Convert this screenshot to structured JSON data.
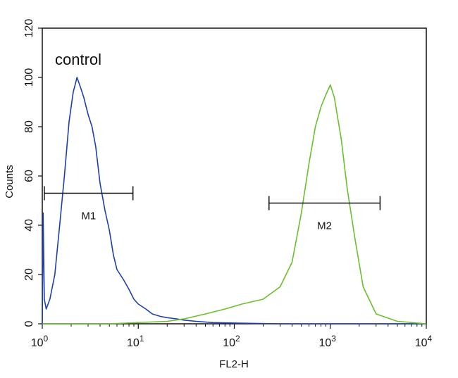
{
  "chart_data": {
    "type": "line",
    "annotation": "control",
    "xlabel": "FL2-H",
    "ylabel": "Counts",
    "x_scale": "log",
    "xlim": [
      1,
      10000
    ],
    "ylim": [
      0,
      120
    ],
    "x_ticks": [
      {
        "value": 1,
        "base": "10",
        "exp": "0"
      },
      {
        "value": 10,
        "base": "10",
        "exp": "1"
      },
      {
        "value": 100,
        "base": "10",
        "exp": "2"
      },
      {
        "value": 1000,
        "base": "10",
        "exp": "3"
      },
      {
        "value": 10000,
        "base": "10",
        "exp": "4"
      }
    ],
    "y_ticks": [
      0,
      20,
      40,
      60,
      80,
      100,
      120
    ],
    "grid": false,
    "series": [
      {
        "color": "#1f3fb0",
        "x": [
          1.0,
          1.02,
          1.05,
          1.1,
          1.2,
          1.35,
          1.5,
          1.7,
          1.9,
          2.1,
          2.3,
          2.5,
          2.7,
          3.0,
          3.3,
          3.6,
          4.0,
          4.5,
          5.0,
          5.5,
          6.0,
          7.0,
          8.0,
          9.0,
          10.0,
          12.0,
          14.0,
          17.0,
          20.0,
          25.0,
          30.0,
          40.0,
          60.0,
          100.0,
          300.0,
          1000.0,
          10000.0
        ],
        "y": [
          0,
          45,
          10,
          6,
          10,
          20,
          38,
          60,
          82,
          94,
          100,
          96,
          92,
          85,
          80,
          72,
          57,
          46,
          38,
          28,
          22,
          18,
          14,
          10,
          8,
          6,
          4,
          3,
          2.5,
          2,
          1.5,
          1,
          0.5,
          0.3,
          0,
          0,
          0
        ]
      },
      {
        "color": "#6abf2e",
        "x": [
          1.0,
          5.0,
          20.0,
          30.0,
          50.0,
          80.0,
          120.0,
          200.0,
          300.0,
          400.0,
          500.0,
          600.0,
          700.0,
          800.0,
          900.0,
          1000.0,
          1100.0,
          1300.0,
          1500.0,
          1800.0,
          2200.0,
          3000.0,
          5000.0,
          10000.0
        ],
        "y": [
          0,
          0,
          1,
          2,
          4,
          6,
          8,
          10,
          15,
          25,
          45,
          65,
          80,
          88,
          93,
          97,
          92,
          75,
          55,
          35,
          15,
          4,
          1,
          0
        ]
      }
    ],
    "markers": [
      {
        "label": "M1",
        "x_start": 1.05,
        "x_end": 8.8,
        "y": 53
      },
      {
        "label": "M2",
        "x_start": 230,
        "x_end": 3300,
        "y": 49
      }
    ]
  }
}
